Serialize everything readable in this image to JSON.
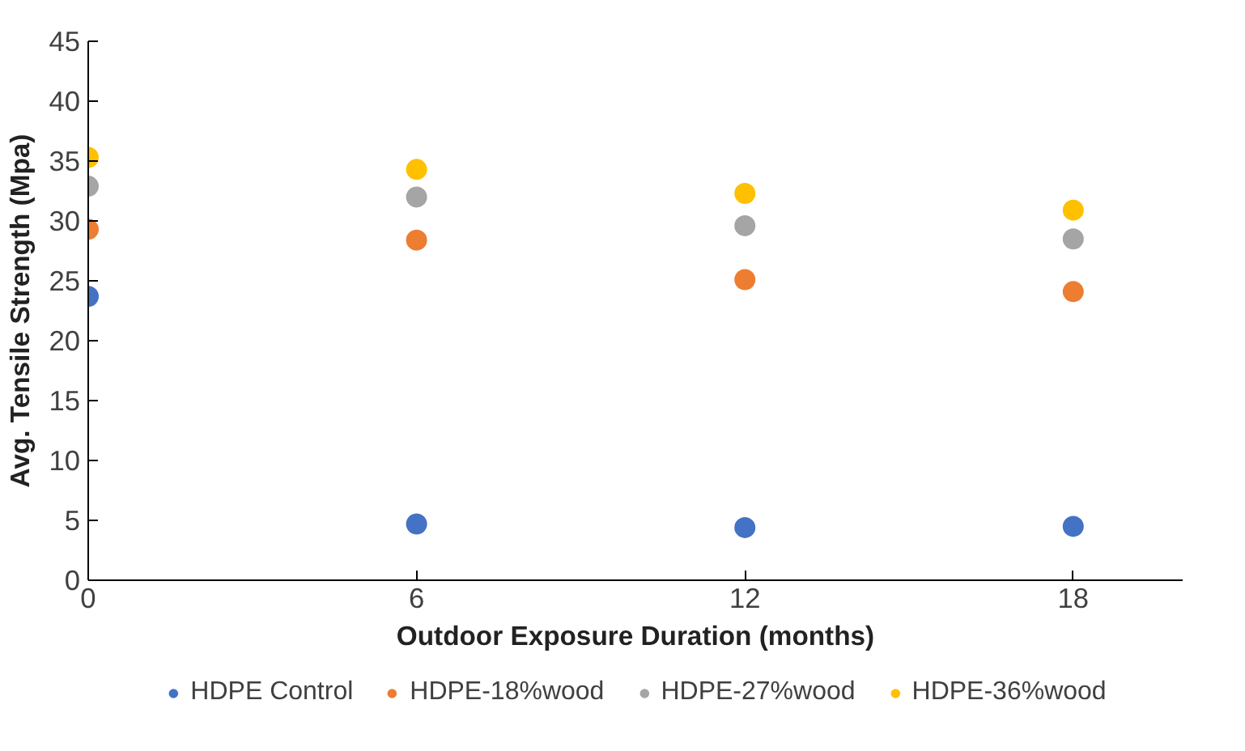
{
  "chart_data": {
    "type": "scatter",
    "xlabel": "Outdoor Exposure Duration (months)",
    "ylabel": "Avg. Tensile Strength (Mpa)",
    "x": [
      0,
      6,
      12,
      18
    ],
    "series": [
      {
        "name": "HDPE Control",
        "color": "#4472c4",
        "values": [
          23.7,
          4.7,
          4.4,
          4.5
        ]
      },
      {
        "name": "HDPE-18%wood",
        "color": "#ed7d31",
        "values": [
          29.3,
          28.4,
          25.1,
          24.1
        ]
      },
      {
        "name": "HDPE-27%wood",
        "color": "#a5a5a5",
        "values": [
          32.9,
          32.0,
          29.6,
          28.5
        ]
      },
      {
        "name": "HDPE-36%wood",
        "color": "#ffc000",
        "values": [
          35.3,
          34.3,
          32.3,
          30.9
        ]
      }
    ],
    "xlim": [
      0,
      20
    ],
    "xticks": [
      0,
      6,
      12,
      18
    ],
    "ylim": [
      0,
      45
    ],
    "yticks": [
      0,
      5,
      10,
      15,
      20,
      25,
      30,
      35,
      40,
      45
    ],
    "grid": false,
    "legend": "bottom",
    "marker": "circle"
  }
}
